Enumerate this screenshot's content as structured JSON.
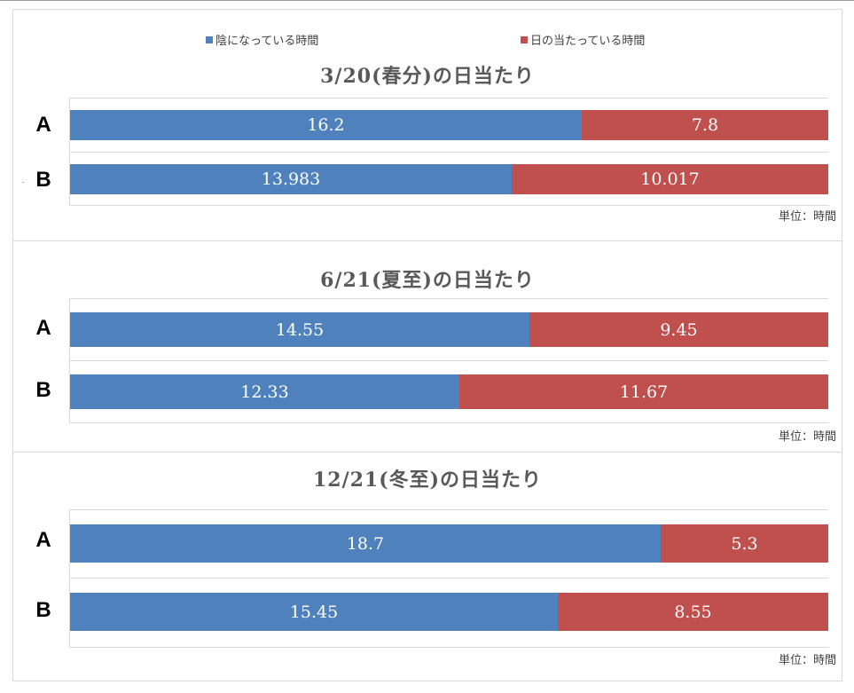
{
  "legend": {
    "shade": "陰になっている時間",
    "sun": "日の当たっている時間"
  },
  "colors": {
    "shade": "#4f81bd",
    "sun": "#c0504d"
  },
  "unit_label": "単位：時間",
  "chart_data": [
    {
      "type": "bar",
      "orientation": "horizontal",
      "stacked": true,
      "title": "3/20(春分)の日当たり",
      "categories": [
        "A",
        "B"
      ],
      "series": [
        {
          "name": "陰になっている時間",
          "values": [
            16.2,
            13.983
          ]
        },
        {
          "name": "日の当たっている時間",
          "values": [
            7.8,
            10.017
          ]
        }
      ],
      "value_labels": [
        [
          "16.2",
          "7.8"
        ],
        [
          "13.983",
          "10.017"
        ]
      ],
      "xlim": [
        0,
        24
      ]
    },
    {
      "type": "bar",
      "orientation": "horizontal",
      "stacked": true,
      "title": "6/21(夏至)の日当たり",
      "categories": [
        "A",
        "B"
      ],
      "series": [
        {
          "name": "陰になっている時間",
          "values": [
            14.55,
            12.33
          ]
        },
        {
          "name": "日の当たっている時間",
          "values": [
            9.45,
            11.67
          ]
        }
      ],
      "value_labels": [
        [
          "14.55",
          "9.45"
        ],
        [
          "12.33",
          "11.67"
        ]
      ],
      "xlim": [
        0,
        24
      ]
    },
    {
      "type": "bar",
      "orientation": "horizontal",
      "stacked": true,
      "title": "12/21(冬至)の日当たり",
      "categories": [
        "A",
        "B"
      ],
      "series": [
        {
          "name": "陰になっている時間",
          "values": [
            18.7,
            15.45
          ]
        },
        {
          "name": "日の当たっている時間",
          "values": [
            5.3,
            8.55
          ]
        }
      ],
      "value_labels": [
        [
          "18.7",
          "5.3"
        ],
        [
          "15.45",
          "8.55"
        ]
      ],
      "xlim": [
        0,
        24
      ]
    }
  ]
}
